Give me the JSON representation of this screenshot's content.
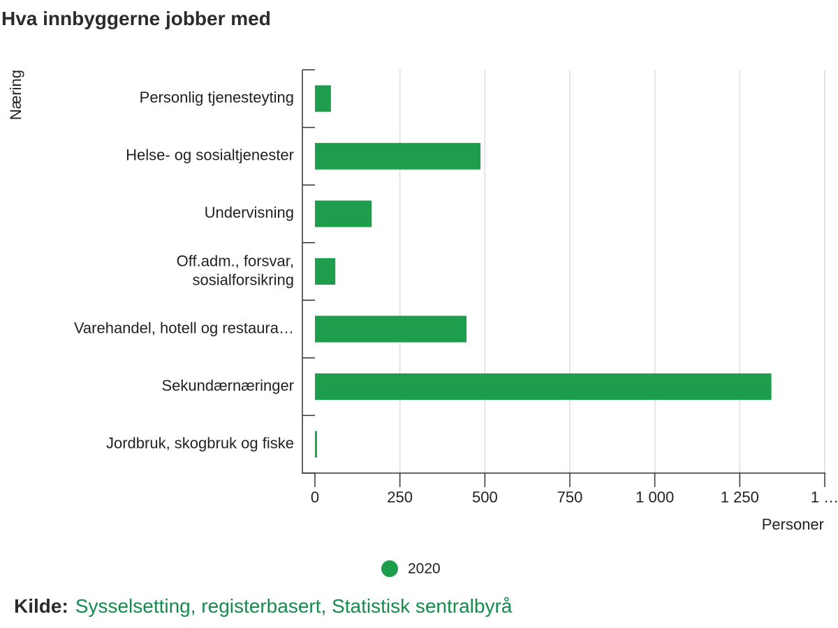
{
  "chart_data": {
    "type": "hbar",
    "title": "Hva innbyggerne jobber med",
    "y_label": "Næring",
    "x_label": "Personer",
    "categories": [
      "Personlig tjenesteyting",
      "Helse- og sosialtjenester",
      "Undervisning",
      "Off.adm., forsvar,\nsosialforsikring",
      "Varehandel, hotell og restaura…",
      "Sekundærnæringer",
      "Jordbruk, skogbruk og fiske"
    ],
    "series": [
      {
        "name": "2020",
        "color": "#1e9e4c",
        "values": [
          47,
          487,
          167,
          60,
          446,
          1343,
          6
        ]
      }
    ],
    "xlim": [
      0,
      1500
    ],
    "xticks": [
      0,
      250,
      500,
      750,
      {
        "value": 1000,
        "label": "1 000"
      },
      {
        "value": 1250,
        "label": "1 250"
      },
      {
        "value": 1500,
        "label": "1 …"
      }
    ],
    "grid": true,
    "legend": "bottom",
    "source_label": "Kilde:",
    "source": "Sysselsetting, registerbasert, Statistisk sentralbyrå"
  }
}
